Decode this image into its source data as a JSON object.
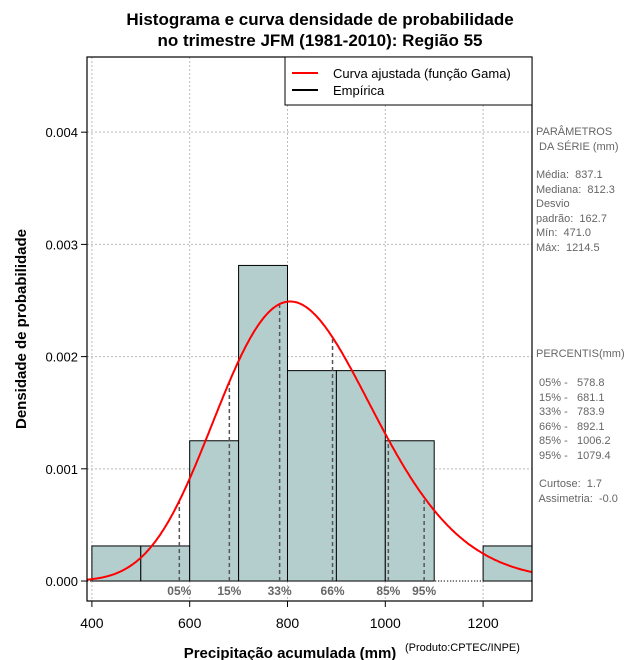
{
  "chart_data": {
    "type": "bar",
    "title_line1": "Histograma e curva densidade de probabilidade",
    "title_line2": "no trimestre JFM (1981-2010): Região 55",
    "xlabel": "Precipitação acumulada (mm)",
    "credit": "(Produto:CPTEC/INPE)",
    "ylabel": "Densidade de probabilidade",
    "xlim": [
      390,
      1300
    ],
    "ylim": [
      -0.000178,
      0.00467
    ],
    "xticks": [
      400,
      600,
      800,
      1000,
      1200
    ],
    "yticks": [
      0,
      0.001,
      0.002,
      0.003,
      0.004
    ],
    "ytick_labels": [
      "0.000",
      "0.001",
      "0.002",
      "0.003",
      "0.004"
    ],
    "bins": [
      [
        400,
        500
      ],
      [
        500,
        600
      ],
      [
        600,
        700
      ],
      [
        700,
        800
      ],
      [
        800,
        900
      ],
      [
        900,
        1000
      ],
      [
        1000,
        1100
      ],
      [
        1100,
        1200
      ],
      [
        1200,
        1300
      ]
    ],
    "densities": [
      0.0003125,
      0.0003125,
      0.00125,
      0.0028125,
      0.001875,
      0.001875,
      0.00125,
      0,
      0.0003125
    ],
    "bar_color": "#b4cece",
    "curve": {
      "name": "Curva ajustada (função Gama)",
      "color": "#ff0000",
      "mean": 837.1,
      "sd": 162.7
    },
    "legend": [
      "Curva ajustada (função Gama)",
      "Empírica"
    ],
    "legend_position": "top-right",
    "percentiles": [
      {
        "label": "05%",
        "value": 578.8
      },
      {
        "label": "15%",
        "value": 681.1
      },
      {
        "label": "33%",
        "value": 783.9
      },
      {
        "label": "66%",
        "value": 892.1
      },
      {
        "label": "85%",
        "value": 1006.2
      },
      {
        "label": "95%",
        "value": 1079.4
      }
    ],
    "grid": true
  },
  "params": {
    "title": "PARÂMETROS\n DA SÉRIE (mm)",
    "stats": "Média:  837.1\nMediana:  812.3\nDesvio\npadrão:  162.7\nMín:  471.0\nMáx:  1214.5",
    "perc_title": "PERCENTIS(mm)",
    "perc": " 05% -   578.8\n 15% -   681.1\n 33% -   783.9\n 66% -   892.1\n 85% -   1006.2\n 95% -   1079.4",
    "extra": " Curtose:  1.7\n Assimetria:  -0.0"
  }
}
